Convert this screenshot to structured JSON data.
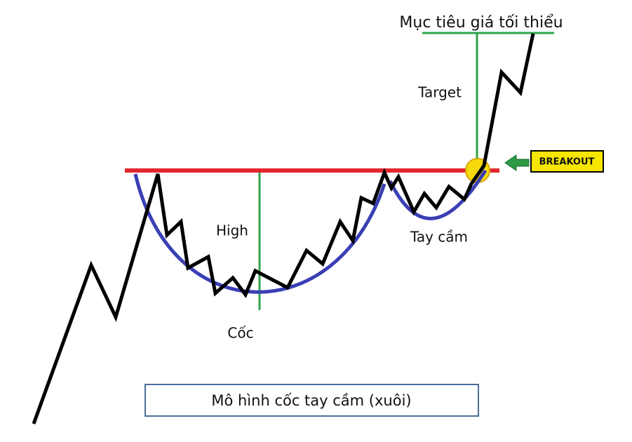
{
  "title": "Mục tiêu giá tối thiểu",
  "labels": {
    "target": "Target",
    "breakout": "BREAKOUT",
    "high": "High",
    "cup": "Cốc",
    "handle": "Tay cầm"
  },
  "caption": "Mô hình cốc tay cầm (xuôi)"
}
